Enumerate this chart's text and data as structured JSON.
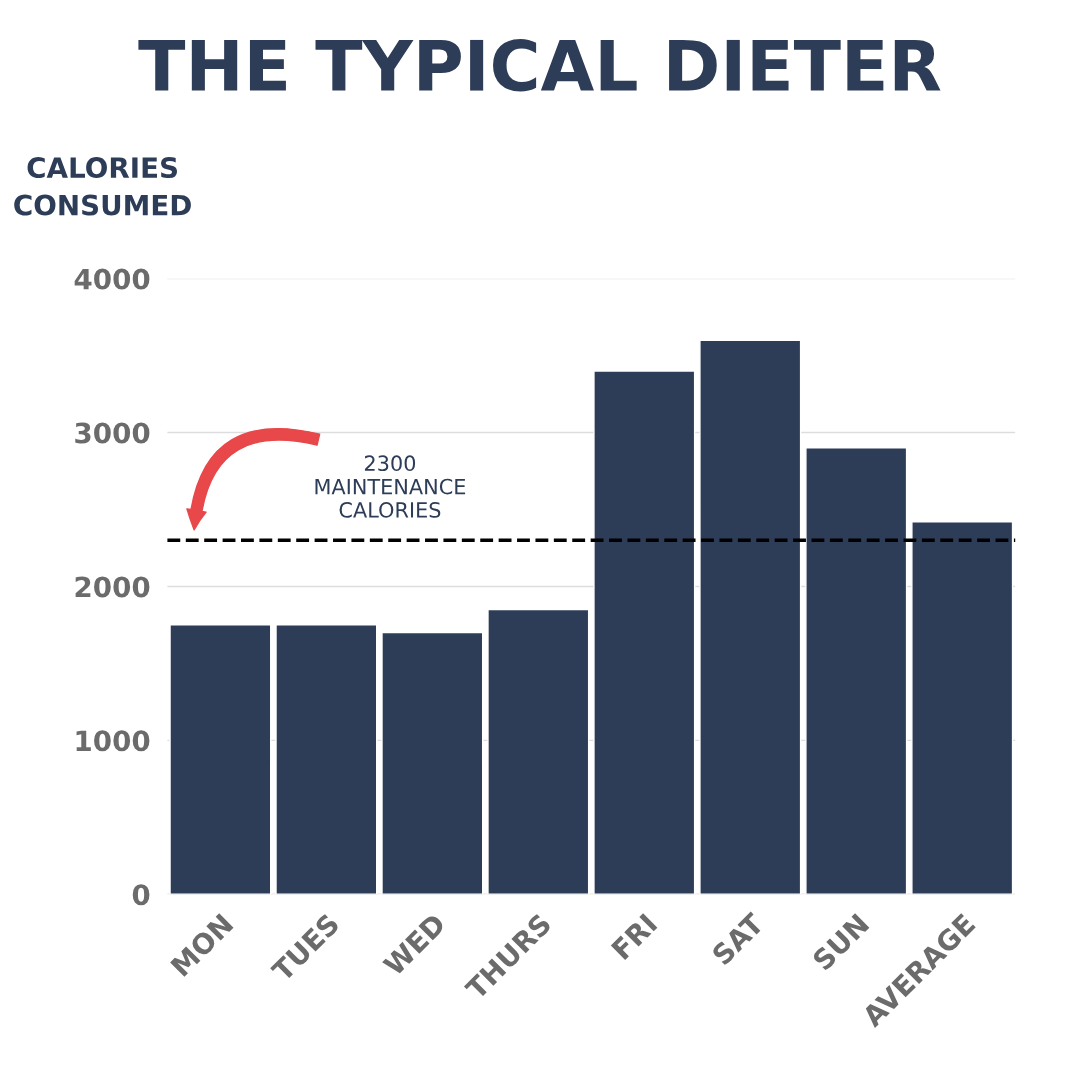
{
  "chart_data": {
    "type": "bar",
    "title": "THE TYPICAL DIETER",
    "ylabel": "CALORIES\nCONSUMED",
    "categories": [
      "MON",
      "TUES",
      "WED",
      "THURS",
      "FRI",
      "SAT",
      "SUN",
      "AVERAGE"
    ],
    "values": [
      1750,
      1750,
      1700,
      1850,
      3400,
      3600,
      2900,
      2420
    ],
    "color": "#2d3c57",
    "ylim": [
      0,
      4000
    ],
    "yticks": [
      0,
      1000,
      2000,
      3000,
      4000
    ],
    "grid": "y",
    "ref_lines": [
      {
        "axis": "y",
        "value": 2300,
        "label": "2300\nMAINTENANCE\nCALORIES",
        "color": "#000000",
        "line_style": "dashed"
      }
    ]
  }
}
